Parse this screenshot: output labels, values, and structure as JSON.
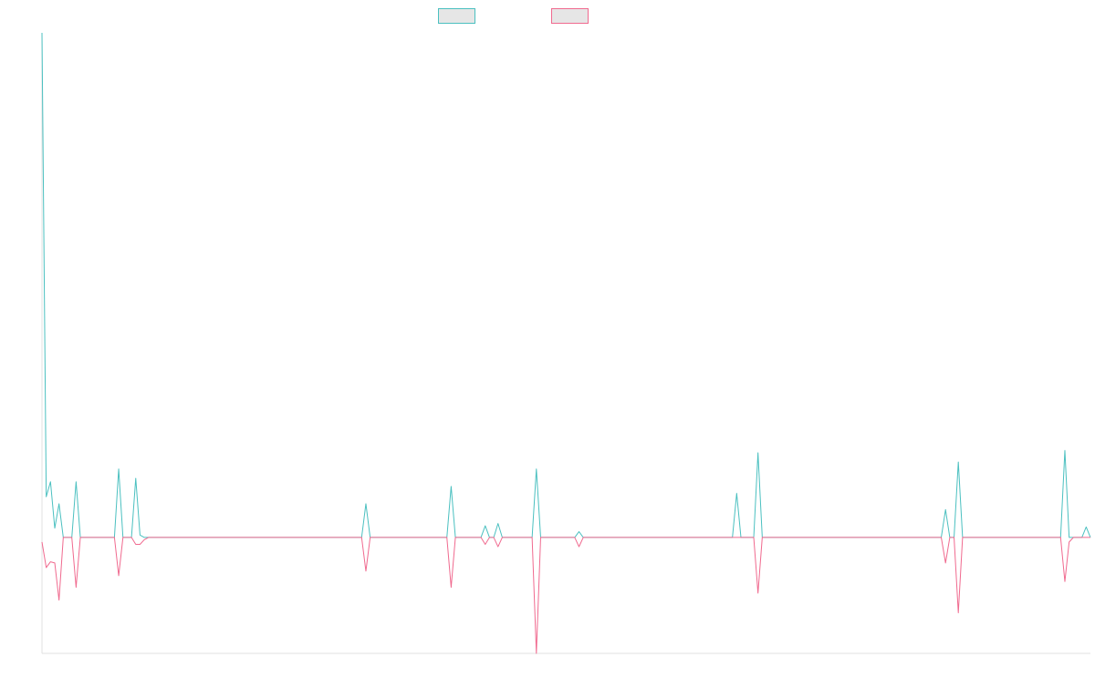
{
  "chart_data": {
    "type": "line",
    "title": "",
    "xlabel": "",
    "ylabel": "",
    "ylim": [
      -100,
      435
    ],
    "grid": false,
    "legend": "top-center",
    "series": [
      {
        "name": "",
        "color": "#4bc0c0",
        "values": [
          435,
          35,
          48,
          8,
          29,
          0,
          0,
          0,
          48,
          0,
          0,
          0,
          0,
          0,
          0,
          0,
          0,
          0,
          59,
          0,
          0,
          0,
          51,
          2,
          0,
          0,
          0,
          0,
          0,
          0,
          0,
          0,
          0,
          0,
          0,
          0,
          0,
          0,
          0,
          0,
          0,
          0,
          0,
          0,
          0,
          0,
          0,
          0,
          0,
          0,
          0,
          0,
          0,
          0,
          0,
          0,
          0,
          0,
          0,
          0,
          0,
          0,
          0,
          0,
          0,
          0,
          0,
          0,
          0,
          0,
          0,
          0,
          0,
          0,
          0,
          0,
          29,
          0,
          0,
          0,
          0,
          0,
          0,
          0,
          0,
          0,
          0,
          0,
          0,
          0,
          0,
          0,
          0,
          0,
          0,
          0,
          44,
          0,
          0,
          0,
          0,
          0,
          0,
          0,
          10,
          0,
          0,
          12,
          0,
          0,
          0,
          0,
          0,
          0,
          0,
          0,
          59,
          0,
          0,
          0,
          0,
          0,
          0,
          0,
          0,
          0,
          5,
          0,
          0,
          0,
          0,
          0,
          0,
          0,
          0,
          0,
          0,
          0,
          0,
          0,
          0,
          0,
          0,
          0,
          0,
          0,
          0,
          0,
          0,
          0,
          0,
          0,
          0,
          0,
          0,
          0,
          0,
          0,
          0,
          0,
          0,
          0,
          0,
          38,
          0,
          0,
          0,
          0,
          73,
          0,
          0,
          0,
          0,
          0,
          0,
          0,
          0,
          0,
          0,
          0,
          0,
          0,
          0,
          0,
          0,
          0,
          0,
          0,
          0,
          0,
          0,
          0,
          0,
          0,
          0,
          0,
          0,
          0,
          0,
          0,
          0,
          0,
          0,
          0,
          0,
          0,
          0,
          0,
          0,
          0,
          0,
          0,
          24,
          0,
          0,
          65,
          0,
          0,
          0,
          0,
          0,
          0,
          0,
          0,
          0,
          0,
          0,
          0,
          0,
          0,
          0,
          0,
          0,
          0,
          0,
          0,
          0,
          0,
          0,
          0,
          75,
          0,
          0,
          0,
          0,
          9,
          0
        ]
      },
      {
        "name": "",
        "color": "#f06a8f",
        "values": [
          -4,
          -26,
          -21,
          -22,
          -54,
          0,
          0,
          0,
          -43,
          0,
          0,
          0,
          0,
          0,
          0,
          0,
          0,
          0,
          -33,
          0,
          0,
          0,
          -6,
          -6,
          -2,
          0,
          0,
          0,
          0,
          0,
          0,
          0,
          0,
          0,
          0,
          0,
          0,
          0,
          0,
          0,
          0,
          0,
          0,
          0,
          0,
          0,
          0,
          0,
          0,
          0,
          0,
          0,
          0,
          0,
          0,
          0,
          0,
          0,
          0,
          0,
          0,
          0,
          0,
          0,
          0,
          0,
          0,
          0,
          0,
          0,
          0,
          0,
          0,
          0,
          0,
          0,
          -29,
          0,
          0,
          0,
          0,
          0,
          0,
          0,
          0,
          0,
          0,
          0,
          0,
          0,
          0,
          0,
          0,
          0,
          0,
          0,
          -43,
          0,
          0,
          0,
          0,
          0,
          0,
          0,
          -6,
          0,
          0,
          -8,
          0,
          0,
          0,
          0,
          0,
          0,
          0,
          0,
          -100,
          0,
          0,
          0,
          0,
          0,
          0,
          0,
          0,
          0,
          -8,
          0,
          0,
          0,
          0,
          0,
          0,
          0,
          0,
          0,
          0,
          0,
          0,
          0,
          0,
          0,
          0,
          0,
          0,
          0,
          0,
          0,
          0,
          0,
          0,
          0,
          0,
          0,
          0,
          0,
          0,
          0,
          0,
          0,
          0,
          0,
          0,
          0,
          0,
          0,
          0,
          0,
          -48,
          0,
          0,
          0,
          0,
          0,
          0,
          0,
          0,
          0,
          0,
          0,
          0,
          0,
          0,
          0,
          0,
          0,
          0,
          0,
          0,
          0,
          0,
          0,
          0,
          0,
          0,
          0,
          0,
          0,
          0,
          0,
          0,
          0,
          0,
          0,
          0,
          0,
          0,
          0,
          0,
          0,
          0,
          0,
          -22,
          0,
          0,
          -65,
          0,
          0,
          0,
          0,
          0,
          0,
          0,
          0,
          0,
          0,
          0,
          0,
          0,
          0,
          0,
          0,
          0,
          0,
          0,
          0,
          0,
          0,
          0,
          0,
          -38,
          -4,
          0,
          0,
          0,
          0,
          0
        ]
      }
    ]
  }
}
